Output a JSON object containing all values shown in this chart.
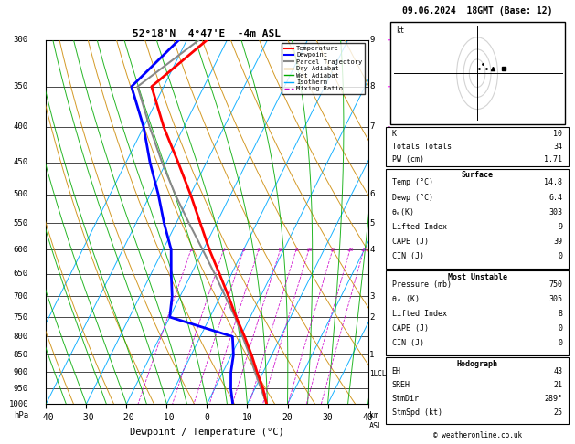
{
  "title_left": "52°18'N  4°47'E  -4m ASL",
  "title_right": "09.06.2024  18GMT (Base: 12)",
  "xlabel": "Dewpoint / Temperature (°C)",
  "pressure_levels": [
    300,
    350,
    400,
    450,
    500,
    550,
    600,
    650,
    700,
    750,
    800,
    850,
    900,
    950,
    1000
  ],
  "temp_range": [
    -40,
    40
  ],
  "temp_profile_p": [
    1000,
    950,
    900,
    850,
    800,
    750,
    700,
    650,
    600,
    550,
    500,
    450,
    400,
    350,
    300
  ],
  "temp_profile_t": [
    14.8,
    12.0,
    8.5,
    5.0,
    1.0,
    -3.5,
    -8.0,
    -13.0,
    -18.5,
    -24.0,
    -30.0,
    -37.0,
    -45.0,
    -53.0,
    -45.0
  ],
  "dewpoint_profile_p": [
    1000,
    950,
    900,
    850,
    800,
    750,
    700,
    650,
    600,
    550,
    500,
    450,
    400,
    350,
    300
  ],
  "dewpoint_profile_t": [
    6.4,
    4.0,
    2.0,
    0.5,
    -2.0,
    -20.0,
    -22.0,
    -25.0,
    -28.0,
    -33.0,
    -38.0,
    -44.0,
    -50.0,
    -58.0,
    -52.0
  ],
  "parcel_profile_p": [
    1000,
    950,
    900,
    850,
    800,
    750,
    700,
    650,
    600,
    550,
    500,
    450,
    400,
    350,
    300
  ],
  "parcel_profile_t": [
    14.8,
    11.5,
    8.0,
    4.5,
    0.5,
    -3.8,
    -8.8,
    -14.2,
    -20.2,
    -26.8,
    -33.8,
    -41.0,
    -48.5,
    -56.5,
    -47.0
  ],
  "mixing_ratio_values": [
    1,
    2,
    3,
    4,
    6,
    8,
    10,
    15,
    20,
    25
  ],
  "mixing_ratio_labels": [
    "1",
    "2",
    "3",
    "4",
    "6",
    "8",
    "10",
    "15",
    "20",
    "25"
  ],
  "bg_color": "#ffffff",
  "temp_color": "#ff0000",
  "dewpoint_color": "#0000ff",
  "parcel_color": "#888888",
  "isotherm_color": "#00aaff",
  "dry_adiabat_color": "#cc8800",
  "wet_adiabat_color": "#00aa00",
  "mixing_ratio_color": "#cc00cc",
  "skew_factor": 45,
  "lcl_pressure": 905,
  "stats_K": 10,
  "stats_TT": 34,
  "stats_PW": 1.71,
  "stats_surf_temp": 14.8,
  "stats_surf_dewp": 6.4,
  "stats_surf_theta_e": 303,
  "stats_surf_LI": 9,
  "stats_surf_CAPE": 39,
  "stats_surf_CIN": 0,
  "stats_mu_pressure": 750,
  "stats_mu_theta_e": 305,
  "stats_mu_LI": 8,
  "stats_mu_CAPE": 0,
  "stats_mu_CIN": 0,
  "stats_hodo_EH": 43,
  "stats_hodo_SREH": 21,
  "stats_hodo_StmDir": "289°",
  "stats_hodo_StmSpd": 25,
  "km_labels": {
    "300": "9",
    "350": "8",
    "400": "7",
    "500": "6",
    "550": "5",
    "600": "4",
    "700": "3",
    "750": "2",
    "850": "1"
  },
  "wind_right_colors": {
    "300": "#ff00ff",
    "350": "#ff00ff",
    "400": "#aa00aa",
    "500": "#8800aa",
    "550": "#8800aa",
    "600": "#00aaaa",
    "650": "#00aaaa",
    "700": "#00aaaa",
    "750": "#00aaaa",
    "800": "#00aaaa",
    "850": "#00aaaa",
    "900": "#00aaaa",
    "950": "#00aaaa",
    "1000": "#00aaaa"
  }
}
